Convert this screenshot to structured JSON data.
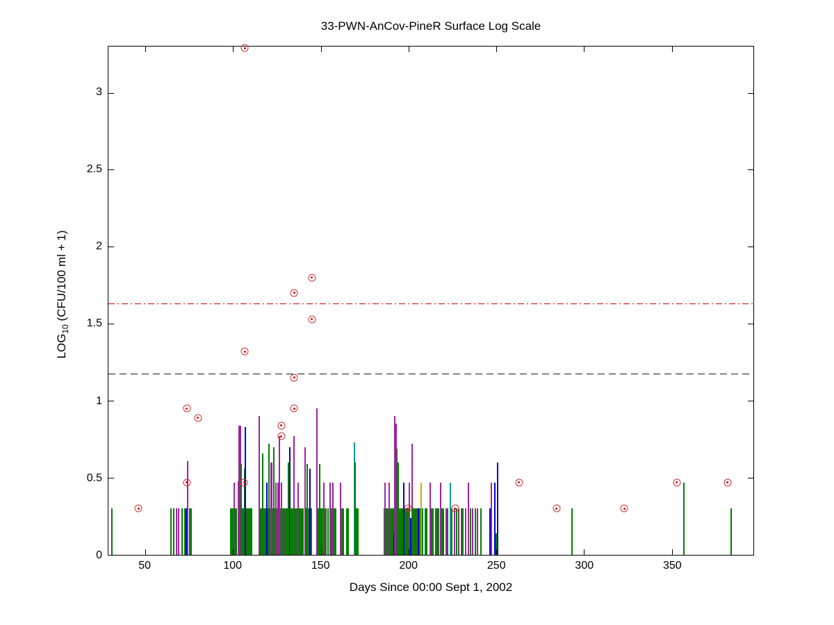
{
  "chart_data": {
    "type": "stem",
    "title": "33-PWN-AnCov-PineR Surface Log Scale",
    "xlabel": "Days Since 00:00 Sept 1, 2002",
    "ylabel": {
      "prefix": "LOG",
      "subscript": "10",
      "suffix": " (CFU/100 ml + 1)"
    },
    "xlim": [
      29,
      396.5
    ],
    "ylim": [
      0,
      3.3
    ],
    "xticks": [
      50,
      100,
      150,
      200,
      250,
      300,
      350
    ],
    "yticks": [
      0,
      0.5,
      1,
      1.5,
      2,
      2.5,
      3
    ],
    "grid": false,
    "legend": "none",
    "reference_lines": [
      {
        "y": 1.63,
        "style": "dashdot",
        "color": "#CC0000"
      },
      {
        "y": 1.175,
        "style": "dashed",
        "color": "#1A1A1A"
      }
    ],
    "colors": {
      "g": "#007F00",
      "m": "#A020A0",
      "b": "#0000CC",
      "c": "#00A0A0",
      "k": "#4D4D4D",
      "y": "#B8B800"
    },
    "marker_color": "#CC2020",
    "circle_points": [
      [
        46.1,
        0.3
      ],
      [
        73.7,
        0.95
      ],
      [
        73.7,
        0.47
      ],
      [
        80.0,
        0.89
      ],
      [
        106.8,
        3.29
      ],
      [
        106.8,
        1.32
      ],
      [
        106.3,
        0.47
      ],
      [
        127.6,
        0.84
      ],
      [
        127.6,
        0.77
      ],
      [
        134.8,
        1.7
      ],
      [
        134.8,
        1.15
      ],
      [
        134.8,
        0.95
      ],
      [
        145.0,
        1.8
      ],
      [
        145.0,
        1.53
      ],
      [
        199.6,
        0.3
      ],
      [
        226.5,
        0.3
      ],
      [
        262.9,
        0.47
      ],
      [
        284.4,
        0.3
      ],
      [
        323.0,
        0.3
      ],
      [
        352.8,
        0.47
      ],
      [
        381.7,
        0.47
      ]
    ],
    "stems": [
      [
        31.0,
        0.3,
        "g"
      ],
      [
        64.8,
        0.3,
        "g"
      ],
      [
        66.2,
        0.3,
        "g"
      ],
      [
        68.0,
        0.3,
        "m"
      ],
      [
        69.1,
        0.3,
        "m"
      ],
      [
        70.8,
        0.3,
        "g"
      ],
      [
        72.4,
        0.3,
        "g"
      ],
      [
        73.4,
        0.3,
        "b"
      ],
      [
        74.3,
        0.61,
        "m"
      ],
      [
        75.3,
        0.3,
        "g"
      ],
      [
        76.3,
        0.3,
        "g"
      ],
      [
        98.6,
        0.3,
        "g"
      ],
      [
        99.2,
        0.3,
        "g"
      ],
      [
        99.8,
        0.3,
        "g"
      ],
      [
        100.5,
        0.47,
        "m"
      ],
      [
        101.0,
        0.3,
        "g"
      ],
      [
        101.5,
        0.3,
        "k"
      ],
      [
        102.0,
        0.3,
        "g"
      ],
      [
        102.9,
        0.48,
        "m"
      ],
      [
        103.5,
        0.84,
        "m"
      ],
      [
        104.3,
        0.84,
        "m"
      ],
      [
        104.8,
        0.59,
        "g"
      ],
      [
        105.3,
        0.3,
        "g"
      ],
      [
        106.0,
        0.3,
        "g"
      ],
      [
        106.6,
        0.56,
        "g"
      ],
      [
        107.1,
        0.83,
        "b"
      ],
      [
        107.7,
        0.3,
        "g"
      ],
      [
        108.2,
        0.3,
        "k"
      ],
      [
        108.8,
        0.3,
        "g"
      ],
      [
        109.4,
        0.3,
        "g"
      ],
      [
        110.0,
        0.3,
        "g"
      ],
      [
        110.6,
        0.3,
        "g"
      ],
      [
        114.8,
        0.3,
        "g"
      ],
      [
        115.1,
        0.9,
        "m"
      ],
      [
        115.7,
        0.3,
        "g"
      ],
      [
        116.3,
        0.3,
        "g"
      ],
      [
        116.9,
        0.66,
        "g"
      ],
      [
        117.5,
        0.3,
        "k"
      ],
      [
        118.1,
        0.3,
        "g"
      ],
      [
        118.7,
        0.3,
        "g"
      ],
      [
        119.3,
        0.47,
        "b"
      ],
      [
        119.9,
        0.3,
        "g"
      ],
      [
        120.4,
        0.72,
        "g"
      ],
      [
        121.0,
        0.3,
        "g"
      ],
      [
        121.6,
        0.6,
        "m"
      ],
      [
        122.2,
        0.6,
        "m"
      ],
      [
        122.8,
        0.3,
        "g"
      ],
      [
        123.4,
        0.7,
        "g"
      ],
      [
        124.0,
        0.3,
        "g"
      ],
      [
        124.6,
        0.47,
        "m"
      ],
      [
        125.2,
        0.3,
        "k"
      ],
      [
        125.8,
        0.47,
        "m"
      ],
      [
        126.6,
        0.77,
        "m"
      ],
      [
        127.2,
        0.3,
        "g"
      ],
      [
        127.8,
        0.47,
        "m"
      ],
      [
        128.4,
        0.3,
        "g"
      ],
      [
        129.0,
        0.3,
        "g"
      ],
      [
        129.6,
        0.3,
        "k"
      ],
      [
        130.2,
        0.3,
        "g"
      ],
      [
        130.8,
        0.3,
        "g"
      ],
      [
        131.5,
        0.6,
        "g"
      ],
      [
        132.2,
        0.7,
        "b"
      ],
      [
        132.8,
        0.3,
        "g"
      ],
      [
        133.4,
        0.3,
        "g"
      ],
      [
        134.0,
        0.3,
        "g"
      ],
      [
        134.6,
        0.77,
        "m"
      ],
      [
        135.2,
        0.3,
        "g"
      ],
      [
        135.8,
        0.3,
        "g"
      ],
      [
        136.4,
        0.3,
        "k"
      ],
      [
        137.0,
        0.47,
        "m"
      ],
      [
        137.6,
        0.3,
        "g"
      ],
      [
        138.2,
        0.3,
        "g"
      ],
      [
        138.8,
        0.3,
        "g"
      ],
      [
        139.4,
        0.3,
        "g"
      ],
      [
        140.0,
        0.3,
        "g"
      ],
      [
        140.9,
        0.7,
        "m"
      ],
      [
        141.5,
        0.3,
        "g"
      ],
      [
        142.1,
        0.59,
        "g"
      ],
      [
        142.7,
        0.3,
        "k"
      ],
      [
        143.3,
        0.3,
        "g"
      ],
      [
        143.9,
        0.56,
        "b"
      ],
      [
        144.5,
        0.3,
        "g"
      ],
      [
        148.0,
        0.95,
        "m"
      ],
      [
        148.6,
        0.3,
        "g"
      ],
      [
        149.3,
        0.59,
        "g"
      ],
      [
        149.9,
        0.3,
        "g"
      ],
      [
        150.5,
        0.3,
        "k"
      ],
      [
        151.1,
        0.3,
        "g"
      ],
      [
        151.8,
        0.47,
        "m"
      ],
      [
        152.4,
        0.3,
        "g"
      ],
      [
        153.0,
        0.3,
        "g"
      ],
      [
        154.0,
        0.3,
        "g"
      ],
      [
        155.2,
        0.47,
        "m"
      ],
      [
        156.0,
        0.3,
        "g"
      ],
      [
        156.8,
        0.47,
        "m"
      ],
      [
        157.6,
        0.3,
        "g"
      ],
      [
        158.4,
        0.3,
        "g"
      ],
      [
        161.4,
        0.47,
        "m"
      ],
      [
        162.2,
        0.3,
        "g"
      ],
      [
        163.0,
        0.3,
        "g"
      ],
      [
        165.0,
        0.3,
        "g"
      ],
      [
        165.8,
        0.3,
        "g"
      ],
      [
        169.0,
        0.73,
        "c"
      ],
      [
        169.6,
        0.6,
        "g"
      ],
      [
        170.4,
        0.3,
        "g"
      ],
      [
        171.2,
        0.3,
        "g"
      ],
      [
        186.2,
        0.3,
        "g"
      ],
      [
        186.8,
        0.47,
        "m"
      ],
      [
        187.4,
        0.3,
        "g"
      ],
      [
        188.0,
        0.3,
        "k"
      ],
      [
        188.8,
        0.47,
        "m"
      ],
      [
        189.4,
        0.3,
        "g"
      ],
      [
        190.0,
        0.3,
        "g"
      ],
      [
        190.6,
        0.3,
        "g"
      ],
      [
        191.3,
        0.3,
        "g"
      ],
      [
        191.8,
        0.15,
        "b"
      ],
      [
        192.1,
        0.9,
        "m"
      ],
      [
        192.9,
        0.85,
        "m"
      ],
      [
        193.5,
        0.69,
        "k"
      ],
      [
        194.2,
        0.6,
        "g"
      ],
      [
        194.8,
        0.3,
        "g"
      ],
      [
        195.4,
        0.3,
        "g"
      ],
      [
        196.0,
        0.3,
        "g"
      ],
      [
        196.6,
        0.3,
        "g"
      ],
      [
        197.3,
        0.47,
        "b"
      ],
      [
        197.9,
        0.3,
        "g"
      ],
      [
        198.5,
        0.3,
        "g"
      ],
      [
        199.1,
        0.3,
        "g"
      ],
      [
        199.8,
        0.3,
        "g"
      ],
      [
        200.6,
        0.47,
        "m"
      ],
      [
        201.3,
        0.24,
        "b"
      ],
      [
        201.9,
        0.72,
        "m"
      ],
      [
        202.5,
        0.3,
        "g"
      ],
      [
        203.1,
        0.3,
        "g"
      ],
      [
        203.7,
        0.3,
        "g"
      ],
      [
        204.4,
        0.3,
        "k"
      ],
      [
        205.0,
        0.3,
        "g"
      ],
      [
        205.8,
        0.3,
        "b"
      ],
      [
        206.4,
        0.3,
        "g"
      ],
      [
        207.4,
        0.47,
        "y"
      ],
      [
        208.1,
        0.3,
        "g"
      ],
      [
        209.5,
        0.3,
        "g"
      ],
      [
        210.3,
        0.3,
        "g"
      ],
      [
        212.5,
        0.47,
        "m"
      ],
      [
        213.3,
        0.3,
        "g"
      ],
      [
        214.1,
        0.3,
        "g"
      ],
      [
        215.5,
        0.3,
        "g"
      ],
      [
        216.3,
        0.3,
        "k"
      ],
      [
        217.1,
        0.3,
        "g"
      ],
      [
        218.4,
        0.47,
        "m"
      ],
      [
        219.2,
        0.3,
        "g"
      ],
      [
        220.0,
        0.3,
        "g"
      ],
      [
        221.4,
        0.3,
        "m"
      ],
      [
        222.2,
        0.3,
        "g"
      ],
      [
        224.0,
        0.47,
        "c"
      ],
      [
        224.8,
        0.3,
        "g"
      ],
      [
        226.2,
        0.3,
        "m"
      ],
      [
        227.6,
        0.3,
        "g"
      ],
      [
        228.4,
        0.3,
        "k"
      ],
      [
        230.0,
        0.3,
        "m"
      ],
      [
        231.0,
        0.3,
        "g"
      ],
      [
        232.4,
        0.3,
        "m"
      ],
      [
        234.2,
        0.47,
        "m"
      ],
      [
        235.2,
        0.3,
        "g"
      ],
      [
        236.6,
        0.3,
        "m"
      ],
      [
        238.0,
        0.3,
        "g"
      ],
      [
        239.4,
        0.3,
        "m"
      ],
      [
        241.3,
        0.3,
        "g"
      ],
      [
        246.4,
        0.3,
        "b"
      ],
      [
        247.1,
        0.47,
        "m"
      ],
      [
        249.3,
        0.47,
        "b"
      ],
      [
        250.0,
        0.14,
        "g"
      ],
      [
        250.9,
        0.6,
        "b"
      ],
      [
        293.3,
        0.3,
        "g"
      ],
      [
        356.9,
        0.47,
        "g"
      ],
      [
        383.7,
        0.3,
        "g"
      ]
    ]
  }
}
